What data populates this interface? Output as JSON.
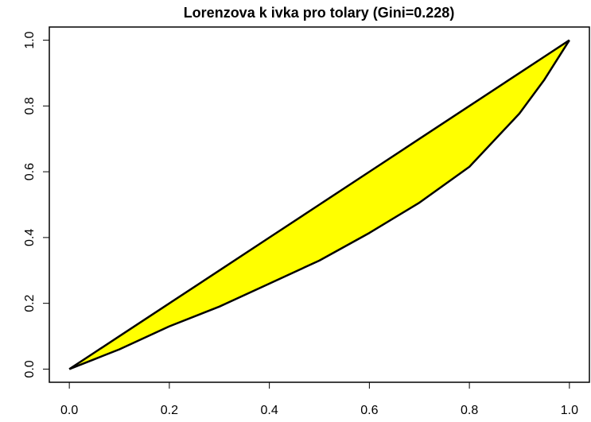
{
  "chart_data": {
    "type": "area",
    "title": "Lorenzova k ivka pro tolary (Gini=0.228)",
    "x": [
      0,
      0.05,
      0.1,
      0.2,
      0.3,
      0.4,
      0.5,
      0.6,
      0.7,
      0.8,
      0.9,
      0.95,
      1
    ],
    "series": [
      {
        "color": "#000000",
        "values": [
          0,
          0.03,
          0.06,
          0.13,
          0.19,
          0.26,
          0.33,
          0.414,
          0.506,
          0.615,
          0.777,
          0.88,
          1
        ]
      },
      {
        "color": "#000000",
        "values": [
          0,
          0.05,
          0.1,
          0.2,
          0.3,
          0.4,
          0.5,
          0.6,
          0.7,
          0.8,
          0.9,
          0.95,
          1
        ]
      }
    ],
    "fill": "#ffff00",
    "xlim": [
      -0.04,
      1.04
    ],
    "ylim": [
      -0.04,
      1.04
    ],
    "xticks": [
      {
        "value": 0,
        "label": "0.0"
      },
      0.2,
      0.4,
      0.6,
      0.8,
      {
        "value": 1,
        "label": "1.0"
      }
    ],
    "yticks": [
      {
        "value": 0,
        "label": "0.0"
      },
      0.2,
      0.4,
      0.6,
      0.8,
      {
        "value": 1,
        "label": "1.0"
      }
    ]
  }
}
